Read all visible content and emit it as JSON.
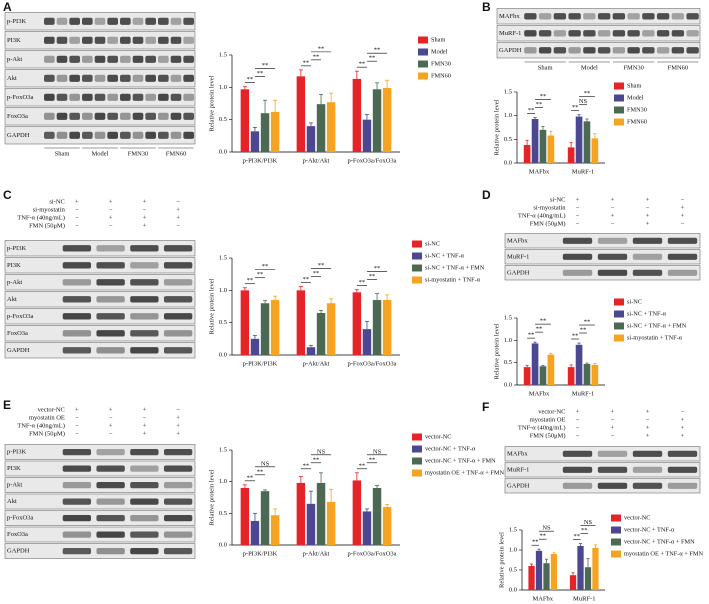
{
  "panels": [
    {
      "letter": "A",
      "blot": {
        "rows": [
          "p-PI3K",
          "PI3K",
          "p-Akt",
          "Akt",
          "p-FoxO3a",
          "FoxO3a",
          "GAPDH"
        ],
        "groups": [
          "Sham",
          "Model",
          "FMN30",
          "FMN60"
        ]
      }
    },
    {
      "letter": "B",
      "blot": {
        "rows": [
          "MAFbx",
          "MuRF-1",
          "GAPDH"
        ],
        "groups": [
          "Sham",
          "Model",
          "FMN30",
          "FMN60"
        ]
      }
    },
    {
      "letter": "C",
      "blot": {
        "rows": [
          "p-PI3K",
          "PI3K",
          "p-Akt",
          "Akt",
          "p-FoxO3a",
          "FoxO3a",
          "GAPDH"
        ],
        "conditions": [
          {
            "label": "si-NC",
            "signs": [
              "+",
              "+",
              "+",
              "−"
            ]
          },
          {
            "label": "si-myostatin",
            "signs": [
              "−",
              "−",
              "−",
              "+"
            ]
          },
          {
            "label": "TNF-α (40ng/mL)",
            "signs": [
              "−",
              "+",
              "+",
              "+"
            ]
          },
          {
            "label": "FMN (50μM)",
            "signs": [
              "−",
              "−",
              "+",
              "−"
            ]
          }
        ]
      }
    },
    {
      "letter": "D",
      "blot": {
        "rows": [
          "MAFbx",
          "MuRF-1",
          "GAPDH"
        ],
        "conditions": [
          {
            "label": "si-NC",
            "signs": [
              "+",
              "+",
              "+",
              "−"
            ]
          },
          {
            "label": "si-myostatin",
            "signs": [
              "−",
              "−",
              "−",
              "+"
            ]
          },
          {
            "label": "TNF-α (40ng/mL)",
            "signs": [
              "−",
              "+",
              "+",
              "+"
            ]
          },
          {
            "label": "FMN (50μM)",
            "signs": [
              "−",
              "−",
              "+",
              "−"
            ]
          }
        ]
      }
    },
    {
      "letter": "E",
      "blot": {
        "rows": [
          "p-PI3K",
          "PI3K",
          "p-Akt",
          "Akt",
          "p-FoxO3a",
          "FoxO3a",
          "GAPDH"
        ],
        "conditions": [
          {
            "label": "vector-NC",
            "signs": [
              "+",
              "+",
              "+",
              "−"
            ]
          },
          {
            "label": "myostatin OE",
            "signs": [
              "−",
              "−",
              "−",
              "+"
            ]
          },
          {
            "label": "TNF-α (40ng/mL)",
            "signs": [
              "−",
              "+",
              "+",
              "+"
            ]
          },
          {
            "label": "FMN (50μM)",
            "signs": [
              "−",
              "−",
              "+",
              "+"
            ]
          }
        ]
      }
    },
    {
      "letter": "F",
      "blot": {
        "rows": [
          "MAFbx",
          "MuRF-1",
          "GAPDH"
        ],
        "conditions": [
          {
            "label": "vector-NC",
            "signs": [
              "+",
              "+",
              "+",
              "−"
            ]
          },
          {
            "label": "myostatin OE",
            "signs": [
              "−",
              "−",
              "−",
              "+"
            ]
          },
          {
            "label": "TNF-α (40ng/mL)",
            "signs": [
              "−",
              "+",
              "+",
              "+"
            ]
          },
          {
            "label": "FMN (50μM)",
            "signs": [
              "−",
              "−",
              "+",
              "+"
            ]
          }
        ]
      }
    }
  ],
  "chart_data": [
    {
      "type": "bar",
      "ylabel": "Relative protein level",
      "categories": [
        "p-PI3K/PI3K",
        "p-Akt/Akt",
        "p-FoxO3a/FoxO3a"
      ],
      "series": [
        {
          "name": "Sham",
          "color": "#e52428",
          "values": [
            0.97,
            1.17,
            1.13
          ],
          "errors": [
            0.04,
            0.1,
            0.12
          ]
        },
        {
          "name": "Model",
          "color": "#4b4791",
          "values": [
            0.32,
            0.4,
            0.5
          ],
          "errors": [
            0.06,
            0.05,
            0.08
          ]
        },
        {
          "name": "FMN30",
          "color": "#4c6a53",
          "values": [
            0.6,
            0.74,
            0.97
          ],
          "errors": [
            0.2,
            0.15,
            0.1
          ]
        },
        {
          "name": "FMN60",
          "color": "#f5a321",
          "values": [
            0.62,
            0.77,
            0.99
          ],
          "errors": [
            0.18,
            0.14,
            0.12
          ]
        }
      ],
      "ylim": [
        0,
        1.5
      ],
      "yticks": [
        {
          "value": 0,
          "label": "0.0"
        },
        {
          "value": 0.5,
          "label": "0.5"
        },
        {
          "value": 1,
          "label": "1.0"
        },
        {
          "value": 1.5,
          "label": "1.5"
        }
      ],
      "significance": [
        [
          "**",
          "**",
          "**"
        ],
        [
          "**",
          "**",
          "**"
        ],
        [
          "**",
          "**",
          "**"
        ]
      ]
    },
    {
      "type": "bar",
      "ylabel": "Relative protein level",
      "categories": [
        "MAFbx",
        "MuRF-1"
      ],
      "series": [
        {
          "name": "Sham",
          "color": "#e52428",
          "values": [
            0.38,
            0.33
          ],
          "errors": [
            0.1,
            0.1
          ]
        },
        {
          "name": "Model",
          "color": "#4b4791",
          "values": [
            0.93,
            0.98
          ],
          "errors": [
            0.03,
            0.04
          ]
        },
        {
          "name": "FMN30",
          "color": "#4c6a53",
          "values": [
            0.7,
            0.88
          ],
          "errors": [
            0.07,
            0.05
          ]
        },
        {
          "name": "FMN60",
          "color": "#f5a321",
          "values": [
            0.58,
            0.52
          ],
          "errors": [
            0.09,
            0.1
          ]
        }
      ],
      "ylim": [
        0,
        1.5
      ],
      "yticks": [
        {
          "value": 0,
          "label": "0.0"
        },
        {
          "value": 0.5,
          "label": "0.5"
        },
        {
          "value": 1,
          "label": "1.0"
        },
        {
          "value": 1.5,
          "label": "1.5"
        }
      ],
      "significance": [
        [
          "**",
          "**",
          "**"
        ],
        [
          "**",
          "NS",
          "**"
        ]
      ]
    },
    {
      "type": "bar",
      "ylabel": "Relative protein level",
      "categories": [
        "p-PI3K/PI3K",
        "p-Akt/Akt",
        "p-FoxO3a/FoxO3a"
      ],
      "series": [
        {
          "name": "si-NC",
          "color": "#e52428",
          "values": [
            1.0,
            1.0,
            0.97
          ],
          "errors": [
            0.04,
            0.06,
            0.04
          ]
        },
        {
          "name": "si-NC + TNF-α",
          "color": "#4b4791",
          "values": [
            0.25,
            0.12,
            0.4
          ],
          "errors": [
            0.05,
            0.03,
            0.12
          ]
        },
        {
          "name": "si-NC + TNF-α + FMN",
          "color": "#4c6a53",
          "values": [
            0.8,
            0.65,
            0.85
          ],
          "errors": [
            0.04,
            0.04,
            0.1
          ]
        },
        {
          "name": "si-myostatin + TNF-α",
          "color": "#f5a321",
          "values": [
            0.85,
            0.8,
            0.85
          ],
          "errors": [
            0.06,
            0.07,
            0.08
          ]
        }
      ],
      "ylim": [
        0,
        1.5
      ],
      "yticks": [
        {
          "value": 0,
          "label": "0.0"
        },
        {
          "value": 0.5,
          "label": "0.5"
        },
        {
          "value": 1,
          "label": "1.0"
        },
        {
          "value": 1.5,
          "label": "1.5"
        }
      ],
      "significance": [
        [
          "**",
          "**",
          "**"
        ],
        [
          "**",
          "**",
          "**"
        ],
        [
          "**",
          "**",
          "**"
        ]
      ]
    },
    {
      "type": "bar",
      "ylabel": "Relative protein level",
      "categories": [
        "MAFbx",
        "MuRF-1"
      ],
      "series": [
        {
          "name": "si-NC",
          "color": "#e52428",
          "values": [
            0.4,
            0.4
          ],
          "errors": [
            0.04,
            0.05
          ]
        },
        {
          "name": "si-NC + TNF-α",
          "color": "#4b4791",
          "values": [
            0.93,
            0.9
          ],
          "errors": [
            0.03,
            0.04
          ]
        },
        {
          "name": "si-NC + TNF-α + FMN",
          "color": "#4c6a53",
          "values": [
            0.42,
            0.47
          ],
          "errors": [
            0.02,
            0.02
          ]
        },
        {
          "name": "si-myostatin + TNF-α",
          "color": "#f5a321",
          "values": [
            0.68,
            0.45
          ],
          "errors": [
            0.03,
            0.03
          ]
        }
      ],
      "ylim": [
        0,
        1.5
      ],
      "yticks": [
        {
          "value": 0,
          "label": "0.0"
        },
        {
          "value": 0.5,
          "label": "0.5"
        },
        {
          "value": 1,
          "label": "1.0"
        },
        {
          "value": 1.5,
          "label": "1.5"
        }
      ],
      "significance": [
        [
          "**",
          "**",
          "**"
        ],
        [
          "**",
          "**",
          "**"
        ]
      ]
    },
    {
      "type": "bar",
      "ylabel": "Relative protein level",
      "categories": [
        "p-PI3K/PI3K",
        "p-Akt/Akt",
        "p-FoxO3a/FoxO3a"
      ],
      "series": [
        {
          "name": "vector-NC",
          "color": "#e52428",
          "values": [
            0.9,
            0.98,
            1.02
          ],
          "errors": [
            0.05,
            0.1,
            0.12
          ]
        },
        {
          "name": "vector-NC + TNF-α",
          "color": "#4b4791",
          "values": [
            0.38,
            0.65,
            0.53
          ],
          "errors": [
            0.12,
            0.2,
            0.04
          ]
        },
        {
          "name": "vector-NC + TNF-α + FMN",
          "color": "#4c6a53",
          "values": [
            0.85,
            0.98,
            0.9
          ],
          "errors": [
            0.02,
            0.16,
            0.04
          ]
        },
        {
          "name": "myostatin OE + TNF-α + FMN",
          "color": "#f5a321",
          "values": [
            0.47,
            0.68,
            0.6
          ],
          "errors": [
            0.1,
            0.2,
            0.04
          ]
        }
      ],
      "ylim": [
        0,
        1.5
      ],
      "yticks": [
        {
          "value": 0,
          "label": "0.0"
        },
        {
          "value": 0.5,
          "label": "0.5"
        },
        {
          "value": 1,
          "label": "1.0"
        },
        {
          "value": 1.5,
          "label": "1.5"
        }
      ],
      "significance": [
        [
          "**",
          "**",
          "NS"
        ],
        [
          "**",
          "**",
          "NS"
        ],
        [
          "**",
          "**",
          "NS"
        ]
      ]
    },
    {
      "type": "bar",
      "ylabel": "Relative protein level",
      "categories": [
        "MAFbx",
        "MuRF-1"
      ],
      "series": [
        {
          "name": "vector-NC",
          "color": "#e52428",
          "values": [
            0.6,
            0.37
          ],
          "errors": [
            0.05,
            0.06
          ]
        },
        {
          "name": "vector-NC + TNF-α",
          "color": "#4b4791",
          "values": [
            0.98,
            1.1
          ],
          "errors": [
            0.04,
            0.06
          ]
        },
        {
          "name": "vector-NC + TNF-α + FMN",
          "color": "#4c6a53",
          "values": [
            0.67,
            0.57
          ],
          "errors": [
            0.1,
            0.22
          ]
        },
        {
          "name": "myostatin OE + TNF-α + FMN",
          "color": "#f5a321",
          "values": [
            0.9,
            1.05
          ],
          "errors": [
            0.03,
            0.08
          ]
        }
      ],
      "ylim": [
        0,
        1.5
      ],
      "yticks": [
        {
          "value": 0,
          "label": "0.0"
        },
        {
          "value": 0.5,
          "label": "0.5"
        },
        {
          "value": 1,
          "label": "1.0"
        },
        {
          "value": 1.5,
          "label": "1.5"
        }
      ],
      "significance": [
        [
          "**",
          "**",
          "NS"
        ],
        [
          "**",
          "**",
          "NS"
        ]
      ]
    }
  ]
}
